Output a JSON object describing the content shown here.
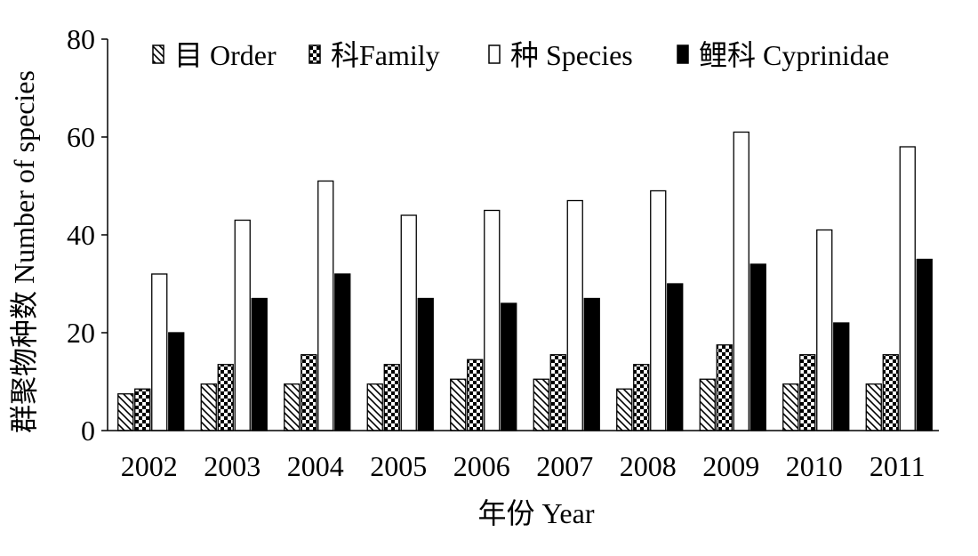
{
  "chart_data": {
    "type": "bar",
    "title": "",
    "xlabel": "年份 Year",
    "ylabel": "群聚物种数 Number of species",
    "ylim": [
      0,
      80
    ],
    "yticks": [
      0,
      20,
      40,
      60,
      80
    ],
    "categories": [
      "2002",
      "2003",
      "2004",
      "2005",
      "2006",
      "2007",
      "2008",
      "2009",
      "2010",
      "2011"
    ],
    "legend_position": "top",
    "grid": false,
    "series": [
      {
        "name": "目 Order",
        "pattern": "diagonal-hatch",
        "color": "#000000",
        "values": [
          7.5,
          9.5,
          9.5,
          9.5,
          10.5,
          10.5,
          8.5,
          10.5,
          9.5,
          9.5
        ]
      },
      {
        "name": "科Family",
        "pattern": "checkerboard",
        "color": "#000000",
        "values": [
          8.5,
          13.5,
          15.5,
          13.5,
          14.5,
          15.5,
          13.5,
          17.5,
          15.5,
          15.5
        ]
      },
      {
        "name": "种 Species",
        "pattern": "white",
        "color": "#ffffff",
        "values": [
          32,
          43,
          51,
          44,
          45,
          47,
          49,
          61,
          41,
          58
        ]
      },
      {
        "name": "鲤科 Cyprinidae",
        "pattern": "solid",
        "color": "#000000",
        "values": [
          20,
          27,
          32,
          27,
          26,
          27,
          30,
          34,
          22,
          35
        ]
      }
    ]
  }
}
